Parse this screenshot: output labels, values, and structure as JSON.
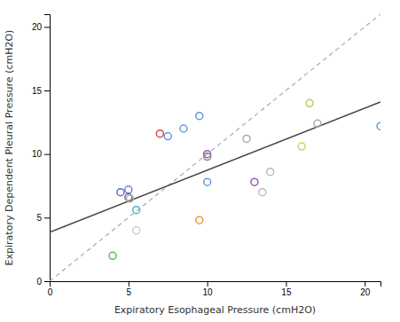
{
  "chart_data": {
    "type": "scatter",
    "xlabel": "Expiratory Esophageal Pressure (cmH2O)",
    "ylabel": "Expiratory Dependent Pleural Pressure (cmH2O)",
    "xlim": [
      0,
      21
    ],
    "ylim": [
      0,
      21
    ],
    "xticks": [
      0,
      5,
      10,
      15,
      20
    ],
    "yticks": [
      0,
      5,
      10,
      15,
      20
    ],
    "grid": false,
    "series": [
      {
        "type": "line",
        "x": [
          0,
          21
        ],
        "values": [
          0,
          21
        ],
        "color": "#aaaaaa",
        "line_style": "dashed"
      },
      {
        "type": "line",
        "x": [
          0,
          21
        ],
        "values": [
          3.85,
          14.1
        ],
        "color": "#444444",
        "line_style": "solid"
      },
      {
        "type": "scatter",
        "marker": "circle",
        "x": [
          4.0,
          4.5,
          5.0,
          5.0,
          5.1,
          5.5,
          5.5,
          7.0,
          7.5,
          8.5,
          9.5,
          10.0,
          10.0,
          10.0,
          9.5,
          12.5,
          13.0,
          13.5,
          14.0,
          16.5,
          17.0,
          16.0,
          21.0
        ],
        "values": [
          2.0,
          7.0,
          7.2,
          6.6,
          6.5,
          5.6,
          4.0,
          11.6,
          11.4,
          12.0,
          13.0,
          10.0,
          9.8,
          7.8,
          4.8,
          11.2,
          7.8,
          7.0,
          8.6,
          14.0,
          12.4,
          10.6,
          12.2
        ],
        "colors": [
          "#5cb85c",
          "#6666cc",
          "#6688cc",
          "#777777",
          "#aaaaaa",
          "#44bbbb",
          "#cccccc",
          "#dd4444",
          "#6699dd",
          "#6699dd",
          "#6699dd",
          "#9955bb",
          "#888888",
          "#6699dd",
          "#ee9933",
          "#aaaaaa",
          "#9955bb",
          "#bbbbbb",
          "#bbbbbb",
          "#bbcc55",
          "#aaaaaa",
          "#ddcc66",
          "#6699dd"
        ]
      }
    ]
  }
}
